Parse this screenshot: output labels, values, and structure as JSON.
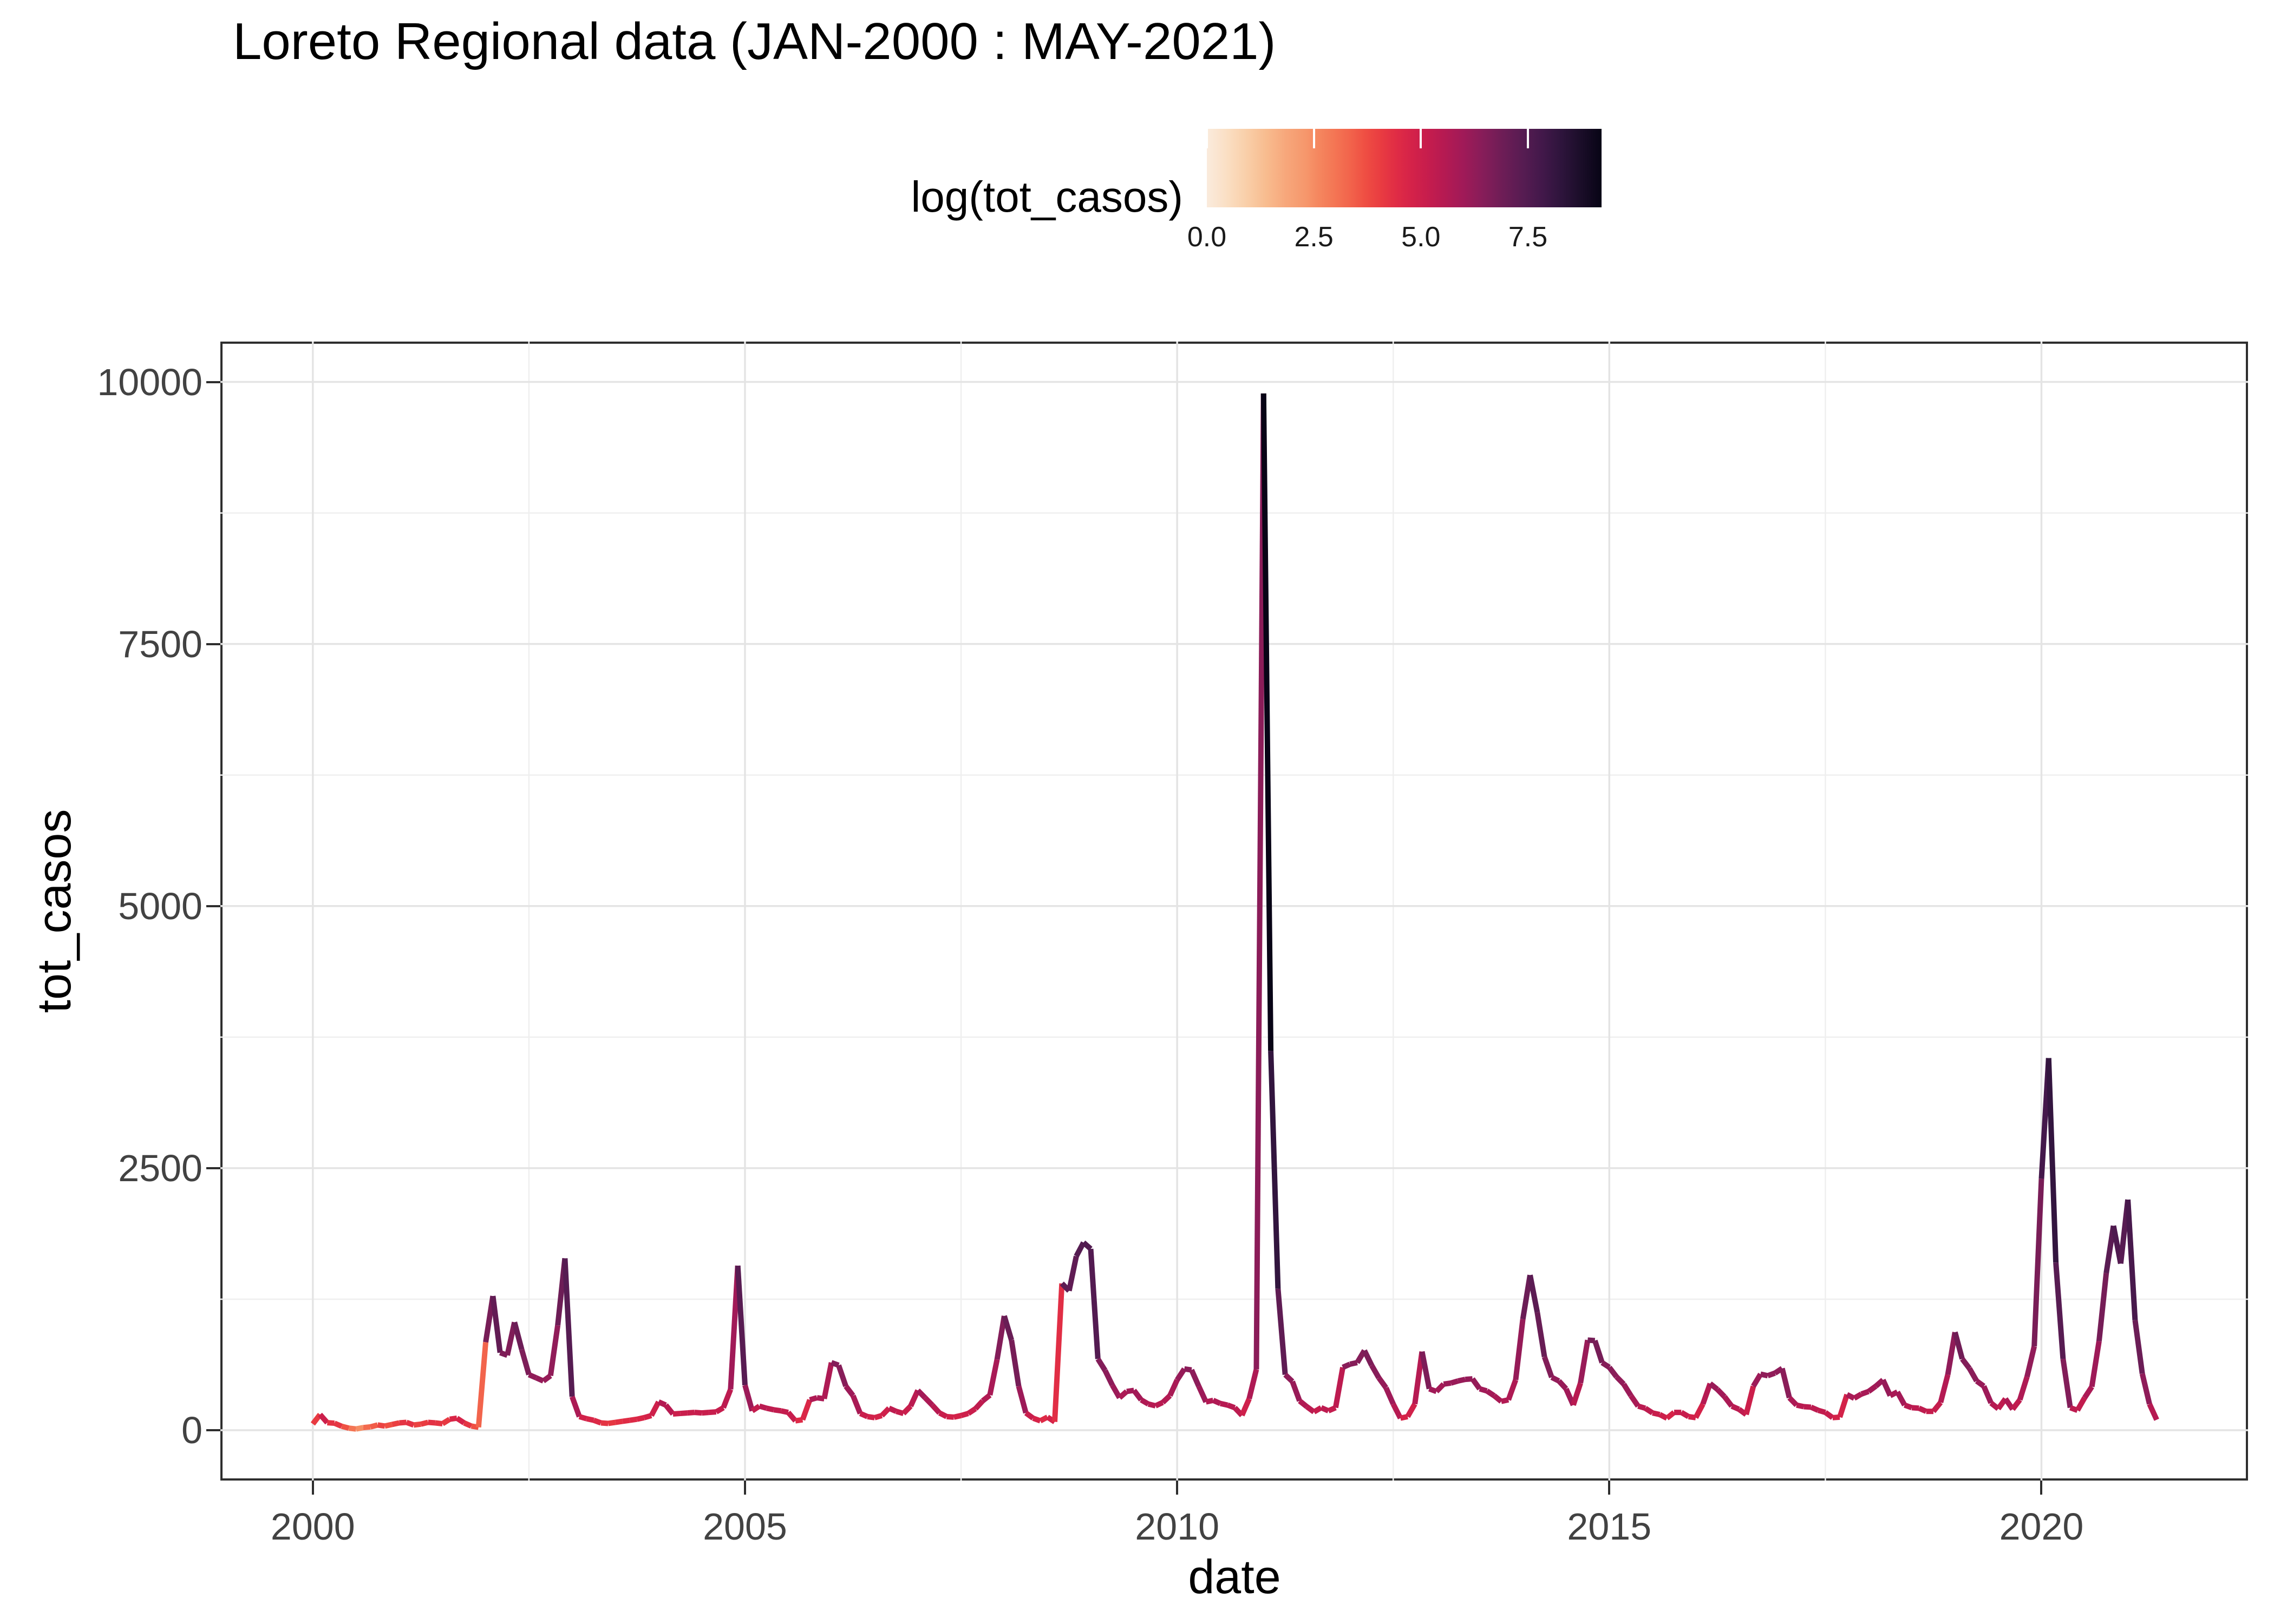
{
  "title": "Loreto Regional data (JAN-2000 : MAY-2021)",
  "colors": {
    "background": "#ffffff",
    "panel_border": "#2e2e2e",
    "grid_major": "#e4e4e4",
    "grid_minor": "#efefef",
    "tick_label": "#424242",
    "title_text": "#000000"
  },
  "chart_data": {
    "type": "line",
    "title": "Loreto Regional data (JAN-2000 : MAY-2021)",
    "xlabel": "date",
    "ylabel": "tot_casos",
    "grid": "major+minor",
    "xlim_years": [
      1998.93,
      2022.39
    ],
    "ylim": [
      -480,
      10385
    ],
    "x_ticks": [
      {
        "label": "2000",
        "year": 2000
      },
      {
        "label": "2005",
        "year": 2005
      },
      {
        "label": "2010",
        "year": 2010
      },
      {
        "label": "2015",
        "year": 2015
      },
      {
        "label": "2020",
        "year": 2020
      }
    ],
    "x_minor_years": [
      2002.5,
      2007.5,
      2012.5,
      2017.5
    ],
    "y_ticks": [
      {
        "label": "0",
        "value": 0
      },
      {
        "label": "2500",
        "value": 2500
      },
      {
        "label": "5000",
        "value": 5000
      },
      {
        "label": "7500",
        "value": 7500
      },
      {
        "label": "10000",
        "value": 10000
      }
    ],
    "y_minor_values": [
      1250,
      3750,
      6250,
      8750
    ],
    "legend": {
      "title": "log(tot_casos)",
      "position": "top",
      "tick_labels": [
        "0.0",
        "2.5",
        "5.0",
        "7.5"
      ],
      "tick_values": [
        0.0,
        2.5,
        5.0,
        7.5
      ],
      "range": [
        0.0,
        9.22
      ]
    },
    "colormap": {
      "name": "rocket_r",
      "stops": [
        [
          0.0,
          "#FAEBDD"
        ],
        [
          0.05,
          "#FADFC4"
        ],
        [
          0.1,
          "#F9CFA9"
        ],
        [
          0.15,
          "#F8BC8F"
        ],
        [
          0.2,
          "#F7A77B"
        ],
        [
          0.25,
          "#F6976C"
        ],
        [
          0.28,
          "#F58860"
        ],
        [
          0.32,
          "#F47755"
        ],
        [
          0.36,
          "#F2654C"
        ],
        [
          0.4,
          "#EF4F43"
        ],
        [
          0.44,
          "#E93C41"
        ],
        [
          0.48,
          "#E02C45"
        ],
        [
          0.52,
          "#D42249"
        ],
        [
          0.56,
          "#C61D4D"
        ],
        [
          0.6,
          "#B61A52"
        ],
        [
          0.65,
          "#A01A58"
        ],
        [
          0.7,
          "#861D59"
        ],
        [
          0.75,
          "#6D1D56"
        ],
        [
          0.8,
          "#571C52"
        ],
        [
          0.85,
          "#42184A"
        ],
        [
          0.9,
          "#2D143B"
        ],
        [
          0.95,
          "#1A0D28"
        ],
        [
          1.0,
          "#070415"
        ]
      ]
    },
    "series": {
      "name": "tot_casos",
      "start": "2000-01",
      "end": "2021-05",
      "frequency": "monthly",
      "color_by": "log(tot_casos)",
      "line_width": 10,
      "values": [
        60,
        150,
        72,
        67,
        38,
        20,
        12,
        25,
        32,
        50,
        40,
        55,
        70,
        75,
        50,
        58,
        75,
        70,
        62,
        105,
        115,
        70,
        40,
        28,
        840,
        1280,
        740,
        715,
        1030,
        770,
        530,
        500,
        470,
        520,
        1000,
        1640,
        320,
        130,
        110,
        95,
        70,
        65,
        75,
        85,
        95,
        105,
        120,
        140,
        270,
        240,
        155,
        160,
        165,
        170,
        165,
        170,
        175,
        215,
        390,
        1570,
        430,
        185,
        230,
        210,
        195,
        185,
        170,
        90,
        100,
        290,
        310,
        300,
        645,
        620,
        420,
        330,
        160,
        130,
        120,
        140,
        210,
        180,
        160,
        230,
        380,
        310,
        240,
        165,
        130,
        125,
        140,
        160,
        205,
        280,
        335,
        675,
        1090,
        860,
        420,
        165,
        115,
        90,
        125,
        80,
        1400,
        1330,
        1660,
        1790,
        1730,
        680,
        570,
        430,
        310,
        370,
        380,
        290,
        250,
        233,
        265,
        330,
        480,
        585,
        575,
        420,
        270,
        285,
        255,
        240,
        215,
        142,
        300,
        580,
        9890,
        3620,
        1350,
        530,
        465,
        280,
        225,
        175,
        215,
        185,
        215,
        600,
        630,
        645,
        760,
        620,
        500,
        405,
        250,
        115,
        130,
        250,
        750,
        395,
        370,
        440,
        450,
        470,
        485,
        490,
        395,
        375,
        330,
        275,
        290,
        480,
        1060,
        1480,
        1125,
        700,
        505,
        470,
        395,
        240,
        450,
        860,
        855,
        645,
        600,
        510,
        440,
        330,
        230,
        210,
        165,
        150,
        115,
        170,
        170,
        130,
        120,
        250,
        445,
        390,
        320,
        230,
        200,
        150,
        420,
        535,
        520,
        545,
        590,
        310,
        240,
        225,
        220,
        190,
        170,
        120,
        125,
        340,
        305,
        345,
        370,
        420,
        480,
        330,
        365,
        240,
        215,
        210,
        180,
        180,
        265,
        530,
        935,
        680,
        590,
        470,
        420,
        260,
        205,
        300,
        200,
        290,
        510,
        800,
        2400,
        3550,
        1600,
        680,
        215,
        190,
        310,
        415,
        850,
        1500,
        1950,
        1590,
        2200,
        1050,
        540,
        250,
        100
      ]
    }
  }
}
